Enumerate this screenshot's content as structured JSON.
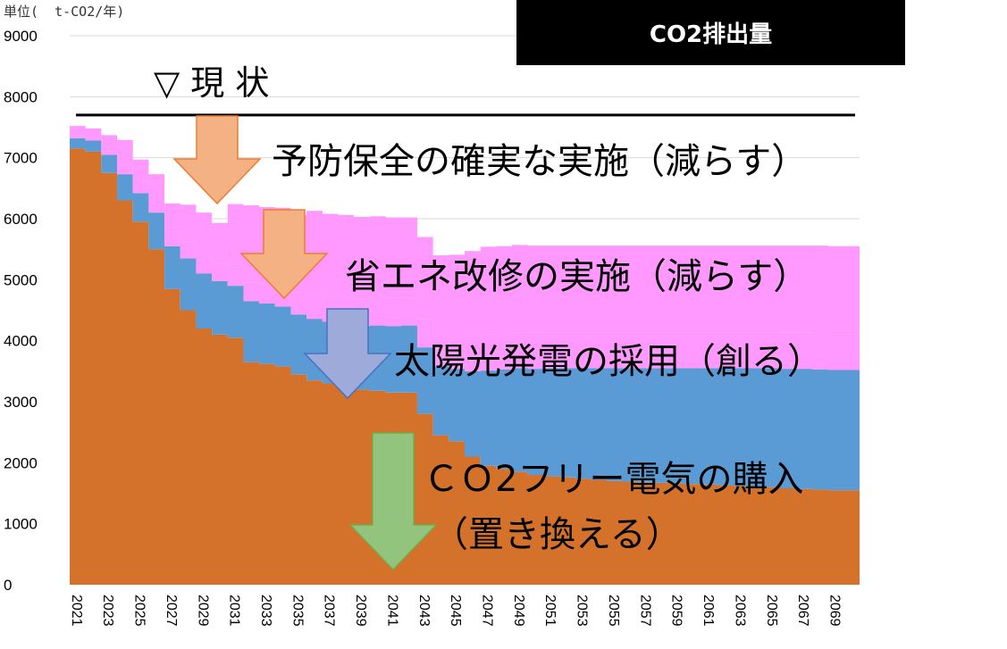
{
  "unit_label": "単位(  t-CO2/年)",
  "chart_title": "CO2排出量",
  "annotations": {
    "current": "▽ 現 状",
    "preventive": "予防保全の確実な実施（減らす）",
    "energy": "省エネ改修の実施（減らす）",
    "solar": "太陽光発電の採用（創る）",
    "purchase_line1": "ＣＯ2フリー電気の購入",
    "purchase_line2": "（置き換える）"
  },
  "colors": {
    "base": "#d4722b",
    "solar": "#5b9bd5",
    "energy": "#ff99ff",
    "preventive": "#ff99ff",
    "arrow_preventive": "#f4b183",
    "arrow_energy": "#f4b183",
    "arrow_solar": "#9eaad9",
    "arrow_purchase": "#93c47d",
    "title_bg": "#000000"
  },
  "chart_data": {
    "type": "area",
    "stacked": true,
    "title": "CO2排出量",
    "ylabel": "単位(  t-CO2/年)",
    "ylim": [
      0,
      9000
    ],
    "yticks": [
      0,
      1000,
      2000,
      3000,
      4000,
      5000,
      6000,
      7000,
      8000,
      9000
    ],
    "x": [
      2021,
      2022,
      2023,
      2024,
      2025,
      2026,
      2027,
      2028,
      2029,
      2030,
      2031,
      2032,
      2033,
      2034,
      2035,
      2036,
      2037,
      2038,
      2039,
      2040,
      2041,
      2042,
      2043,
      2044,
      2045,
      2046,
      2047,
      2048,
      2049,
      2050,
      2051,
      2052,
      2053,
      2054,
      2055,
      2056,
      2057,
      2058,
      2059,
      2060,
      2061,
      2062,
      2063,
      2064,
      2065,
      2066,
      2067,
      2068,
      2069,
      2070
    ],
    "xtick_labels": [
      "2021",
      "2023",
      "2025",
      "2027",
      "2029",
      "2031",
      "2033",
      "2035",
      "2037",
      "2039",
      "2041",
      "2043",
      "2045",
      "2047",
      "2049",
      "2051",
      "2053",
      "2055",
      "2057",
      "2059",
      "2061",
      "2063",
      "2065",
      "2067",
      "2069"
    ],
    "current_level": 7700,
    "series": [
      {
        "key": "base",
        "values": [
          7150,
          7100,
          6750,
          6300,
          5950,
          5500,
          4850,
          4500,
          4200,
          4100,
          4050,
          3650,
          3620,
          3580,
          3450,
          3350,
          3300,
          3250,
          3200,
          3180,
          3150,
          3150,
          2800,
          2450,
          2350,
          2100,
          1950,
          1900,
          1850,
          1800,
          1780,
          1760,
          1740,
          1720,
          1700,
          1690,
          1680,
          1670,
          1660,
          1650,
          1640,
          1630,
          1620,
          1610,
          1600,
          1580,
          1570,
          1560,
          1550,
          1550
        ]
      },
      {
        "key": "solar",
        "values": [
          170,
          180,
          300,
          430,
          470,
          600,
          700,
          850,
          900,
          880,
          850,
          1000,
          990,
          980,
          980,
          1010,
          1010,
          1030,
          1040,
          1070,
          1090,
          1100,
          1090,
          1130,
          1190,
          1400,
          1560,
          1630,
          1700,
          1740,
          1770,
          1790,
          1810,
          1830,
          1850,
          1860,
          1870,
          1880,
          1890,
          1900,
          1910,
          1920,
          1930,
          1940,
          1950,
          1960,
          1970,
          1970,
          1970,
          1970
        ]
      },
      {
        "key": "energy",
        "values": [
          50,
          50,
          120,
          160,
          200,
          200,
          240,
          280,
          300,
          300,
          300,
          300,
          320,
          340,
          360,
          390,
          400,
          420,
          440,
          440,
          460,
          460,
          460,
          490,
          520,
          570,
          590,
          590,
          590,
          590,
          590,
          590,
          590,
          590,
          590,
          590,
          590,
          590,
          590,
          590,
          590,
          590,
          590,
          590,
          590,
          590,
          590,
          590,
          590,
          590
        ]
      },
      {
        "key": "preventive",
        "values": [
          150,
          150,
          200,
          400,
          350,
          430,
          460,
          600,
          700,
          650,
          1040,
          1270,
          1260,
          1280,
          1270,
          1380,
          1370,
          1360,
          1350,
          1350,
          1320,
          1310,
          1350,
          1330,
          1350,
          1400,
          1440,
          1430,
          1430,
          1430,
          1420,
          1420,
          1420,
          1420,
          1420,
          1420,
          1420,
          1420,
          1420,
          1420,
          1420,
          1420,
          1420,
          1420,
          1420,
          1430,
          1430,
          1440,
          1440,
          1440
        ]
      }
    ]
  }
}
